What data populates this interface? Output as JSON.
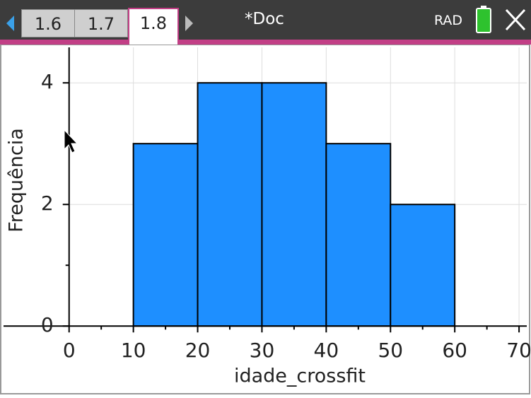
{
  "tabs": [
    "1.6",
    "1.7",
    "1.8"
  ],
  "doc_title": "*Doc",
  "angle_mode": "RAD",
  "chart_data": {
    "type": "histogram",
    "x_label": "idade_crossfit",
    "y_label": "Frequência",
    "bins": [
      10,
      20,
      30,
      40,
      50,
      60
    ],
    "values": [
      3,
      4,
      4,
      3,
      2
    ],
    "color": "#1e8fff",
    "xlim": [
      -10.2,
      71.2
    ],
    "ylim": [
      -1.09,
      4.63
    ],
    "xticks": [
      0,
      10,
      20,
      30,
      40,
      50,
      60,
      70
    ],
    "yticks": [
      0,
      2,
      4
    ],
    "x_minor_ticks": [
      5,
      15,
      25,
      35,
      45,
      55,
      65
    ],
    "y_minor_ticks": [
      1,
      3
    ],
    "grid": true
  }
}
